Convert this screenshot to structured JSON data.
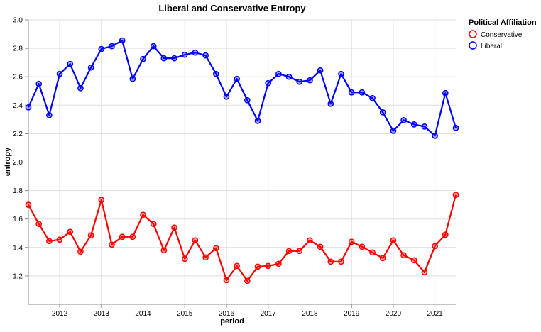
{
  "chart_data": {
    "type": "line",
    "title": "Liberal and Conservative Entropy",
    "xlabel": "period",
    "ylabel": "entropy",
    "xlim": [
      2011.25,
      2021.5
    ],
    "ylim": [
      1.0,
      3.0
    ],
    "x_ticks": [
      "2012",
      "2013",
      "2014",
      "2015",
      "2016",
      "2017",
      "2018",
      "2019",
      "2020",
      "2021"
    ],
    "y_ticks": [
      "1.2",
      "1.4",
      "1.6",
      "1.8",
      "2.0",
      "2.2",
      "2.4",
      "2.6",
      "2.8",
      "3.0"
    ],
    "grid": true,
    "legend": {
      "title": "Political Affiliation",
      "position": "top-right",
      "entries": [
        "Conservative",
        "Liberal"
      ]
    },
    "x": [
      2011.25,
      2011.5,
      2011.75,
      2012.0,
      2012.25,
      2012.5,
      2012.75,
      2013.0,
      2013.25,
      2013.5,
      2013.75,
      2014.0,
      2014.25,
      2014.5,
      2014.75,
      2015.0,
      2015.25,
      2015.5,
      2015.75,
      2016.0,
      2016.25,
      2016.5,
      2016.75,
      2017.0,
      2017.25,
      2017.5,
      2017.75,
      2018.0,
      2018.25,
      2018.5,
      2018.75,
      2019.0,
      2019.25,
      2019.5,
      2019.75,
      2020.0,
      2020.25,
      2020.5,
      2020.75,
      2021.0,
      2021.25,
      2021.5
    ],
    "series": [
      {
        "name": "Conservative",
        "color": "#ff0000",
        "values": [
          1.7,
          1.565,
          1.445,
          1.455,
          1.51,
          1.37,
          1.485,
          1.735,
          1.42,
          1.475,
          1.475,
          1.63,
          1.565,
          1.38,
          1.54,
          1.32,
          1.45,
          1.33,
          1.395,
          1.17,
          1.27,
          1.165,
          1.265,
          1.27,
          1.285,
          1.375,
          1.375,
          1.45,
          1.405,
          1.3,
          1.3,
          1.44,
          1.405,
          1.365,
          1.325,
          1.45,
          1.345,
          1.31,
          1.225,
          1.41,
          1.49,
          1.77
        ]
      },
      {
        "name": "Liberal",
        "color": "#0000ff",
        "values": [
          2.385,
          2.55,
          2.33,
          2.62,
          2.69,
          2.52,
          2.665,
          2.795,
          2.815,
          2.855,
          2.585,
          2.725,
          2.815,
          2.73,
          2.73,
          2.755,
          2.77,
          2.75,
          2.62,
          2.46,
          2.585,
          2.435,
          2.29,
          2.555,
          2.62,
          2.6,
          2.565,
          2.575,
          2.645,
          2.41,
          2.62,
          2.49,
          2.49,
          2.45,
          2.35,
          2.22,
          2.295,
          2.265,
          2.25,
          2.185,
          2.485,
          2.24
        ]
      }
    ]
  }
}
